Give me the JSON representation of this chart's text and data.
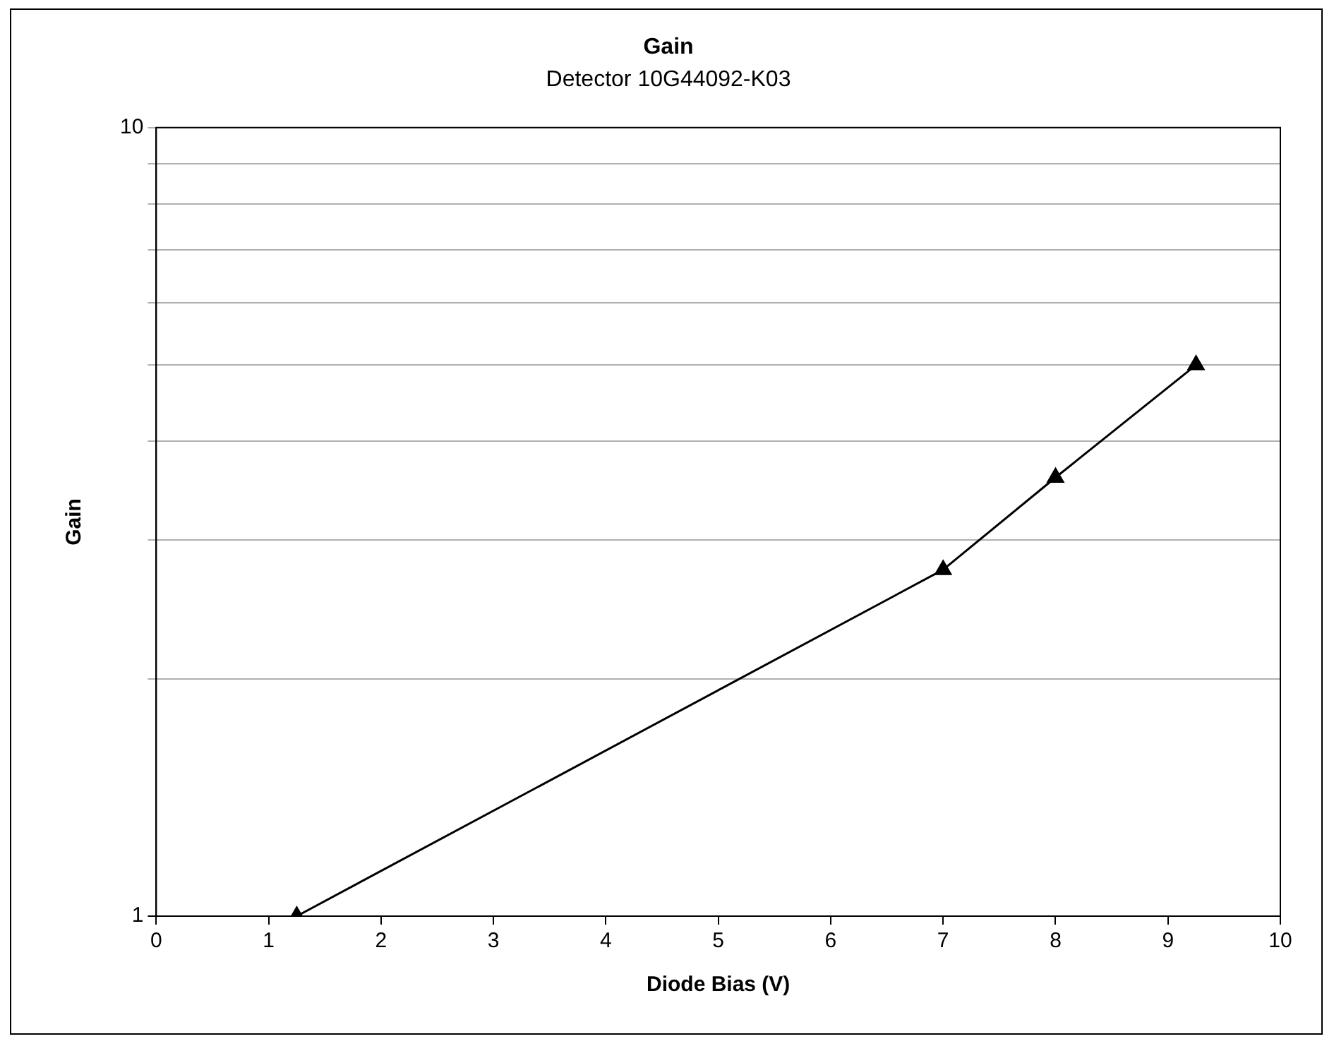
{
  "chart_data": {
    "type": "line",
    "title": "Gain",
    "subtitle": "Detector 10G44092-K03",
    "xlabel": "Diode Bias (V)",
    "ylabel": "Gain",
    "x": [
      1.25,
      7,
      8,
      9.25
    ],
    "series": [
      {
        "color": "#000000",
        "values": [
          1,
          2.75,
          3.6,
          5.0
        ]
      }
    ],
    "xlim": [
      0,
      10
    ],
    "xticks": [
      0,
      1,
      2,
      3,
      4,
      5,
      6,
      7,
      8,
      9,
      10
    ],
    "ylim": [
      1,
      10
    ],
    "yticks": [
      1,
      {
        "value": 2,
        "label": null
      },
      {
        "value": 3,
        "label": null
      },
      {
        "value": 4,
        "label": null
      },
      {
        "value": 5,
        "label": null
      },
      {
        "value": 6,
        "label": null
      },
      {
        "value": 7,
        "label": null
      },
      {
        "value": 8,
        "label": null
      },
      {
        "value": 9,
        "label": null
      },
      10
    ],
    "log": "y",
    "grid": "y",
    "marker": "triangle",
    "line_style": "solid",
    "legend": false
  }
}
